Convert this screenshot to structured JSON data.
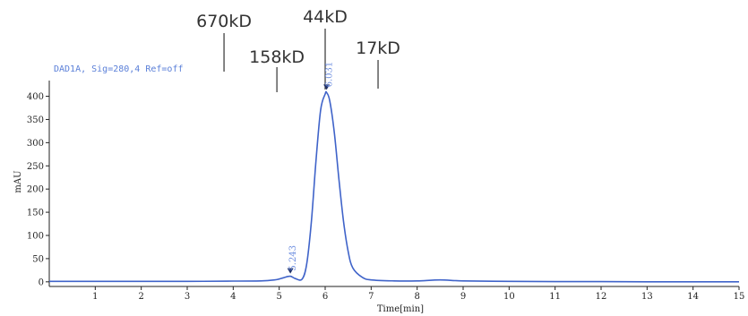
{
  "chart_data": {
    "type": "line",
    "signal_label": "DAD1A, Sig=280,4  Ref=off",
    "xlabel": "Time[min]",
    "ylabel": "mAU",
    "xlim": [
      0,
      15
    ],
    "ylim": [
      -10,
      430
    ],
    "x_ticks": [
      1,
      2,
      3,
      4,
      5,
      6,
      7,
      8,
      9,
      10,
      11,
      12,
      13,
      14,
      15
    ],
    "y_ticks": [
      0,
      50,
      100,
      150,
      200,
      250,
      300,
      350,
      400
    ],
    "grid": false,
    "series": [
      {
        "color": "#3f63c9",
        "x": [
          0,
          0.5,
          1,
          2,
          3,
          4,
          4.6,
          4.9,
          5.0,
          5.1,
          5.243,
          5.35,
          5.5,
          5.6,
          5.7,
          5.8,
          5.9,
          6.0,
          6.031,
          6.1,
          6.2,
          6.3,
          6.4,
          6.5,
          6.6,
          6.8,
          7.0,
          7.5,
          8.0,
          8.5,
          9.0,
          10,
          11,
          12,
          13,
          14,
          15
        ],
        "y": [
          1,
          1,
          1,
          1,
          1,
          1.5,
          2,
          4,
          6,
          9,
          12,
          7,
          6,
          40,
          130,
          260,
          370,
          405,
          408,
          390,
          320,
          220,
          130,
          65,
          30,
          10,
          4,
          2,
          2,
          4,
          2,
          1,
          0.5,
          0.5,
          0,
          0,
          0
        ]
      }
    ],
    "peaks": [
      {
        "label": "5.243",
        "x": 5.243,
        "y": 12
      },
      {
        "label": "6.031",
        "x": 6.031,
        "y": 408
      }
    ],
    "mw_markers": [
      {
        "label": "670kD",
        "x": 3.8
      },
      {
        "label": "158kD",
        "x": 4.95
      },
      {
        "label": "44kD",
        "x": 6.0
      },
      {
        "label": "17kD",
        "x": 7.15
      }
    ]
  },
  "colors": {
    "trace": "#3f63c9",
    "axis": "#222222",
    "marker_line": "#333333",
    "peak_label": "#6f8fe0"
  }
}
